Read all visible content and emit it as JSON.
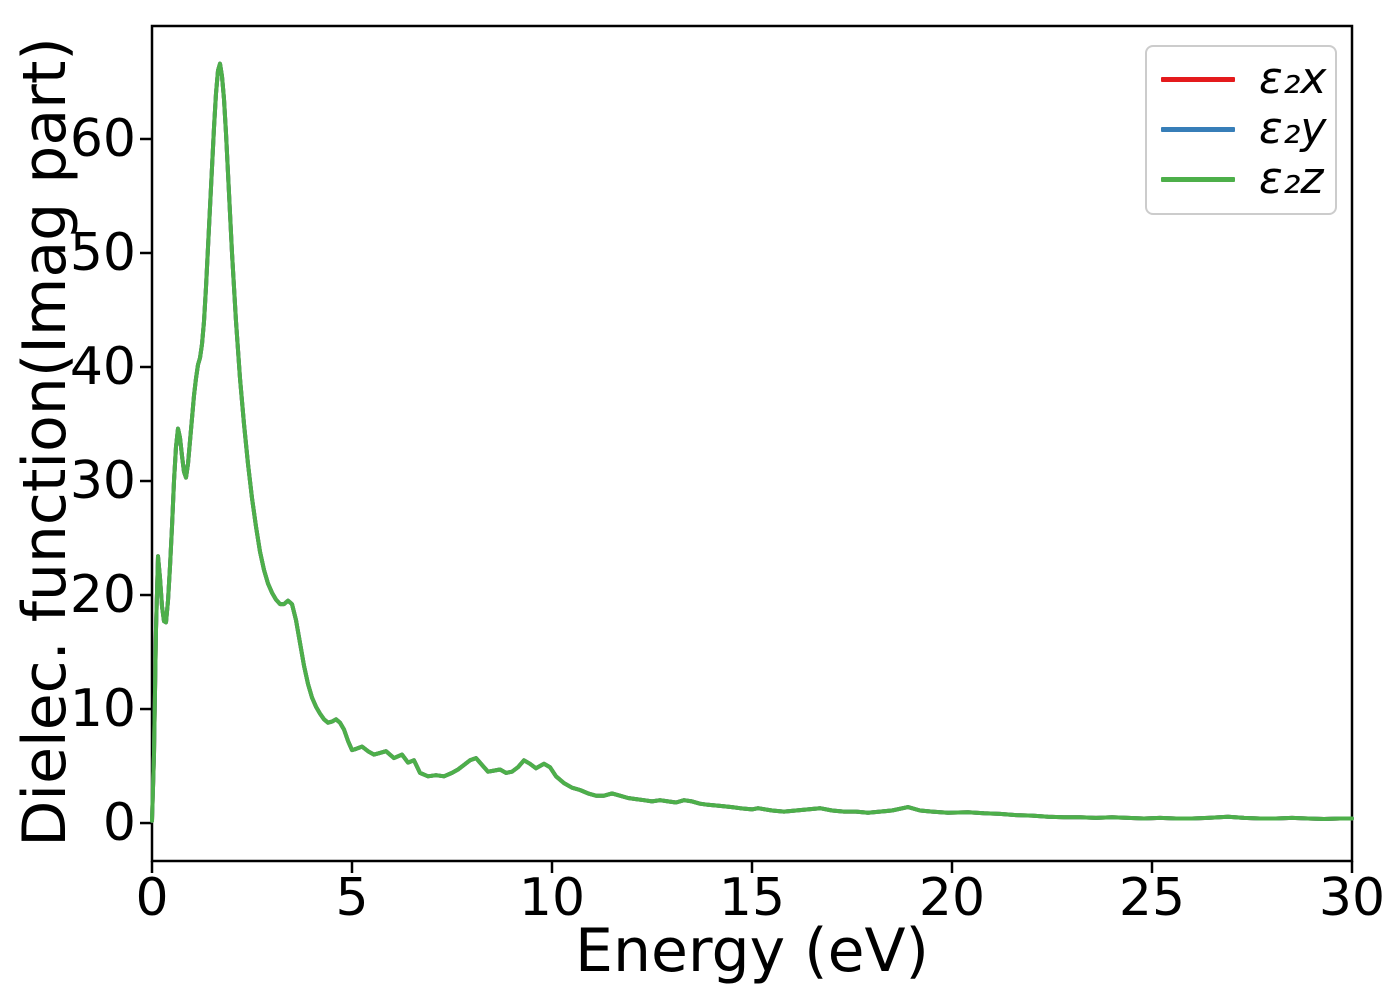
{
  "figure": {
    "xlabel": "Energy (eV)",
    "ylabel": "Dielec. function(Imag part)",
    "background": "#ffffff",
    "spine_color": "#000000"
  },
  "legend": {
    "position": "upper right",
    "border_color": "#cccccc",
    "entries": [
      {
        "label": "ε₂x",
        "color": "#e41a1c"
      },
      {
        "label": "ε₂y",
        "color": "#377eb8"
      },
      {
        "label": "ε₂z",
        "color": "#4daf4a"
      }
    ]
  },
  "chart_data": {
    "type": "line",
    "title": "",
    "xlabel": "Energy (eV)",
    "ylabel": "Dielec. function(Imag part)",
    "xlim": [
      0,
      30
    ],
    "ylim": [
      -3.33,
      69.91
    ],
    "xticks": [
      0,
      5,
      10,
      15,
      20,
      25,
      30
    ],
    "yticks": [
      0,
      10,
      20,
      30,
      40,
      50,
      60
    ],
    "grid": false,
    "legend_position": "upper right",
    "note": "All three series (e2x, e2y, e2z) coincide exactly over the whole range; only the green e2z curve, drawn last, is visible on top.",
    "x": [
      0,
      0.05,
      0.1,
      0.15,
      0.2,
      0.25,
      0.3,
      0.35,
      0.4,
      0.45,
      0.5,
      0.55,
      0.6,
      0.65,
      0.7,
      0.75,
      0.8,
      0.85,
      0.9,
      0.95,
      1,
      1.05,
      1.1,
      1.15,
      1.2,
      1.25,
      1.3,
      1.35,
      1.4,
      1.45,
      1.5,
      1.55,
      1.6,
      1.65,
      1.7,
      1.75,
      1.8,
      1.85,
      1.9,
      1.95,
      2,
      2.1,
      2.2,
      2.3,
      2.4,
      2.5,
      2.6,
      2.7,
      2.8,
      2.9,
      3,
      3.1,
      3.2,
      3.3,
      3.4,
      3.5,
      3.6,
      3.7,
      3.8,
      3.9,
      4,
      4.1,
      4.2,
      4.3,
      4.4,
      4.5,
      4.6,
      4.7,
      4.8,
      4.9,
      5,
      5.1,
      5.25,
      5.4,
      5.55,
      5.7,
      5.85,
      6.05,
      6.25,
      6.4,
      6.55,
      6.7,
      6.9,
      7.1,
      7.3,
      7.5,
      7.65,
      7.8,
      7.95,
      8.1,
      8.25,
      8.4,
      8.55,
      8.7,
      8.85,
      9,
      9.15,
      9.3,
      9.45,
      9.6,
      9.8,
      9.95,
      10.1,
      10.3,
      10.5,
      10.7,
      10.9,
      11.1,
      11.3,
      11.5,
      11.7,
      11.9,
      12.1,
      12.3,
      12.5,
      12.7,
      12.9,
      13.1,
      13.3,
      13.5,
      13.7,
      13.9,
      14.2,
      14.5,
      14.7,
      15,
      15.15,
      15.5,
      15.8,
      16.1,
      16.4,
      16.7,
      17,
      17.3,
      17.6,
      17.9,
      18.2,
      18.5,
      18.9,
      19.2,
      19.5,
      19.9,
      20.4,
      20.8,
      21.2,
      21.6,
      22,
      22.4,
      22.8,
      23.2,
      23.6,
      24,
      24.4,
      24.8,
      25.2,
      25.6,
      26,
      26.4,
      26.9,
      27.3,
      27.7,
      28.1,
      28.5,
      28.9,
      29.3,
      29.7,
      30
    ],
    "shared_y": [
      0.2,
      6,
      17,
      23.4,
      21.5,
      19,
      17.7,
      17.6,
      19.5,
      22.5,
      26,
      30,
      33,
      34.6,
      33.8,
      32.2,
      30.8,
      30.3,
      31.5,
      33.5,
      35.5,
      37.5,
      39,
      40.2,
      40.8,
      42,
      44,
      47,
      50.5,
      54,
      57.5,
      61,
      64,
      66,
      66.6,
      65.5,
      63.5,
      60.5,
      57,
      53.5,
      50,
      44,
      39,
      35,
      31.5,
      28.5,
      26,
      23.8,
      22.2,
      21,
      20.2,
      19.6,
      19.2,
      19.2,
      19.5,
      19.2,
      17.8,
      15.8,
      13.8,
      12.2,
      11,
      10.2,
      9.6,
      9.1,
      8.8,
      8.9,
      9.1,
      8.8,
      8.2,
      7.2,
      6.4,
      6.5,
      6.7,
      6.3,
      6,
      6.15,
      6.3,
      5.7,
      6,
      5.3,
      5.5,
      4.4,
      4.1,
      4.2,
      4.1,
      4.4,
      4.7,
      5.1,
      5.5,
      5.7,
      5.1,
      4.5,
      4.6,
      4.7,
      4.4,
      4.5,
      4.9,
      5.5,
      5.2,
      4.8,
      5.2,
      4.9,
      4.1,
      3.5,
      3.1,
      2.9,
      2.6,
      2.4,
      2.4,
      2.6,
      2.4,
      2.2,
      2.1,
      2,
      1.9,
      2,
      1.9,
      1.8,
      2,
      1.9,
      1.7,
      1.6,
      1.5,
      1.4,
      1.3,
      1.2,
      1.3,
      1.1,
      1,
      1.1,
      1.2,
      1.3,
      1.1,
      1,
      1,
      0.9,
      1,
      1.1,
      1.4,
      1.1,
      1,
      0.9,
      0.95,
      0.85,
      0.8,
      0.7,
      0.65,
      0.55,
      0.5,
      0.5,
      0.45,
      0.5,
      0.45,
      0.4,
      0.45,
      0.4,
      0.4,
      0.45,
      0.55,
      0.45,
      0.4,
      0.4,
      0.45,
      0.4,
      0.35,
      0.4,
      0.4
    ],
    "series": [
      {
        "name": "ε₂x",
        "color": "#e41a1c",
        "values": "shared_y"
      },
      {
        "name": "ε₂y",
        "color": "#377eb8",
        "values": "shared_y"
      },
      {
        "name": "ε₂z",
        "color": "#4daf4a",
        "values": "shared_y"
      }
    ]
  }
}
